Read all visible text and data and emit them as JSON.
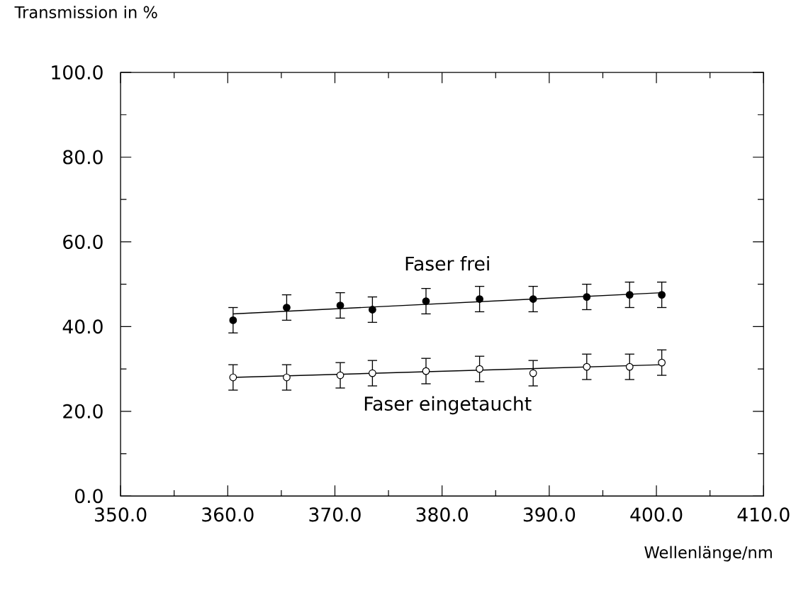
{
  "chart_data": {
    "type": "scatter",
    "xlabel": "Wellenlänge/nm",
    "ylabel": "Transmission in %",
    "xlim": [
      350,
      410
    ],
    "xticks": [
      {
        "value": 350,
        "label": "350.0"
      },
      {
        "value": 360,
        "label": "360.0"
      },
      {
        "value": 370,
        "label": "370.0"
      },
      {
        "value": 380,
        "label": "380.0"
      },
      {
        "value": 390,
        "label": "390.0"
      },
      {
        "value": 400,
        "label": "400.0"
      },
      {
        "value": 410,
        "label": "410.0"
      }
    ],
    "ylim": [
      0,
      100
    ],
    "yticks": [
      {
        "value": 0,
        "label": "0.0"
      },
      {
        "value": 20,
        "label": "20.0"
      },
      {
        "value": 40,
        "label": "40.0"
      },
      {
        "value": 60,
        "label": "60.0"
      },
      {
        "value": 80,
        "label": "80.0"
      },
      {
        "value": 100,
        "label": "100.0"
      }
    ],
    "grid": false,
    "series": [
      {
        "name": "Faser frei",
        "color": "#000000",
        "marker": "circle",
        "x": [
          360.5,
          365.5,
          370.5,
          373.5,
          378.5,
          383.5,
          388.5,
          393.5,
          397.5,
          400.5
        ],
        "values": [
          41.5,
          44.5,
          45,
          44,
          46,
          46.5,
          46.5,
          47,
          47.5,
          47.5
        ],
        "errors": [
          3,
          3,
          3,
          3,
          3,
          3,
          3,
          3,
          3,
          3
        ]
      },
      {
        "name": "Faser eingetaucht",
        "color": "#ffffff",
        "marker": "circle",
        "x": [
          360.5,
          365.5,
          370.5,
          373.5,
          378.5,
          383.5,
          388.5,
          393.5,
          397.5,
          400.5
        ],
        "values": [
          28,
          28,
          28.5,
          29,
          29.5,
          30,
          29,
          30.5,
          30.5,
          31.5
        ],
        "errors": [
          3,
          3,
          3,
          3,
          3,
          3,
          3,
          3,
          3,
          3
        ]
      },
      {
        "type": "line",
        "color": "#000000",
        "x": [
          360.5,
          400.5
        ],
        "values": [
          43,
          48
        ],
        "marker": "none"
      },
      {
        "type": "line",
        "color": "#000000",
        "x": [
          360.5,
          400.5
        ],
        "values": [
          28,
          31
        ],
        "marker": "none"
      }
    ]
  }
}
